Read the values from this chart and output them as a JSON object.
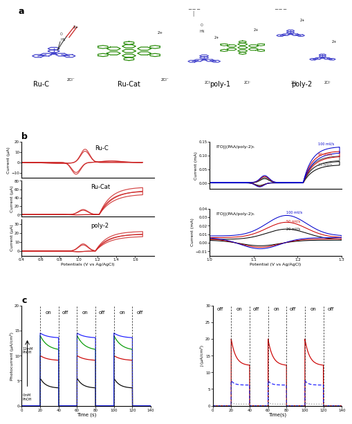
{
  "fig_width": 4.82,
  "fig_height": 5.98,
  "background": "#ffffff",
  "panel_a_label": "a",
  "panel_b_label": "b",
  "panel_c_label": "c",
  "molecules": [
    "Ru-C",
    "Ru-Cat",
    "poly-1",
    "poly-2"
  ],
  "cv_left_xlabel": "Potentials (V vs Ag/AgCl)",
  "cv_left_ylabel": "Current (μA)",
  "cv_right_title1": "ITO||(PAA/poly-2)5",
  "cv_right_title2": "ITO||(PAA/poly-2)5",
  "cv_right_xlabel": "Potential (V vs Ag/AgCl)",
  "cv_right_ylabel": "Current (mA)",
  "pc_left_xlabel": "Time (s)",
  "pc_left_ylabel": "Photocurrent (μA/cm²)",
  "pc_right_xlabel": "Time(s)",
  "pc_right_ylabel": "J (μA/cm²)",
  "red": "#cc2222",
  "blue": "#1a1aff",
  "darkblue": "#000080",
  "green": "#009900",
  "black": "#000000",
  "purple": "#880088",
  "gray": "#666666",
  "lightred": "#ff6666"
}
